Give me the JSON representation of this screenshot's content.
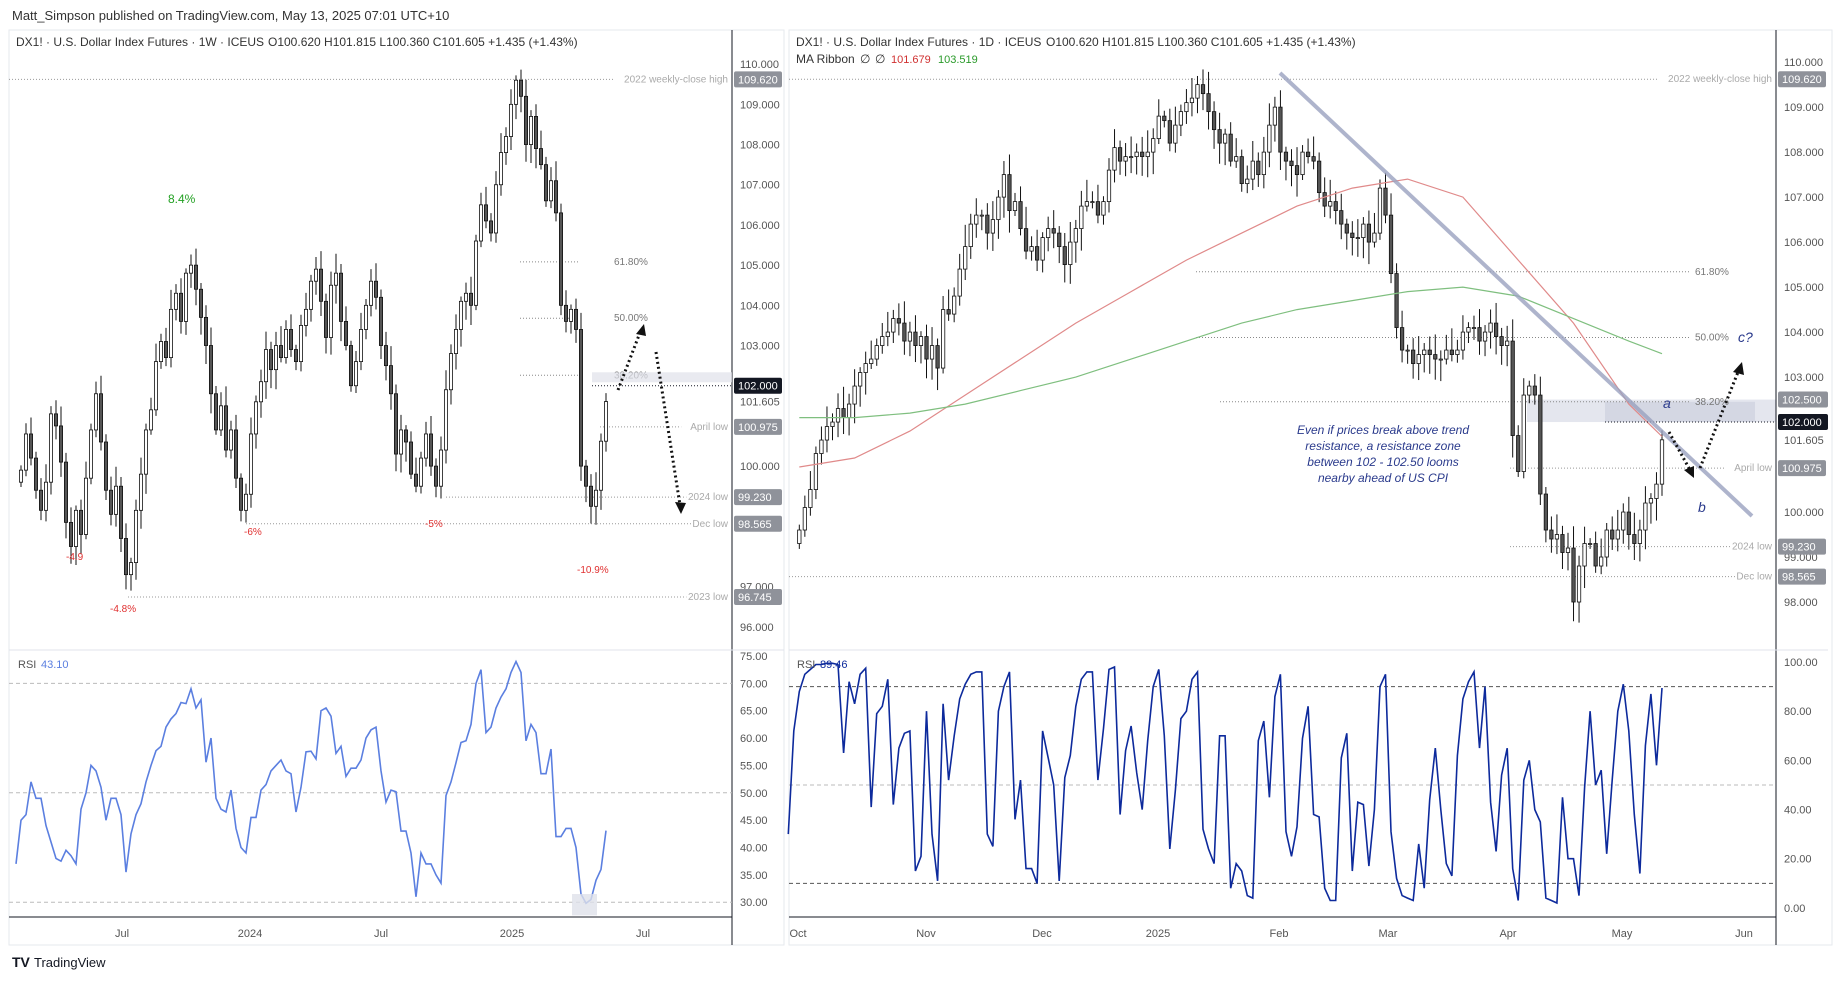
{
  "header": {
    "published": "Matt_Simpson published on TradingView.com, May 13, 2025 07:01 UTC+10"
  },
  "footer": {
    "logo_text": "TradingView"
  },
  "colors": {
    "up_body": "#ffffff",
    "down_body": "#555555",
    "candle_outline": "#111111",
    "rsi_weekly": "#5b7fe0",
    "rsi_daily": "#0d2a9c",
    "ma_fast": "#e08a8a",
    "ma_slow": "#7fbf7f",
    "annotation": "#2a3a8c",
    "pct_up": "#22a022",
    "pct_down": "#e03030"
  },
  "chart_data": [
    {
      "type": "candlestick",
      "legend": {
        "symbol": "DX1! · U.S. Dollar Index Futures · 1W · ICEUS",
        "ohlc": "O100.620  H101.815  L100.360  C101.605  +1.435 (+1.43%)"
      },
      "timeframe": "1W",
      "ylim": [
        95.5,
        110.8
      ],
      "y_ticks": [
        "110.000",
        "109.000",
        "108.000",
        "107.000",
        "106.000",
        "105.000",
        "104.000",
        "103.000",
        "100.000",
        "97.000",
        "96.000"
      ],
      "x_ticks": [
        "Jul",
        "2024",
        "Jul",
        "2025",
        "Jul"
      ],
      "last_bar": {
        "open": 100.62,
        "high": 101.815,
        "low": 100.36,
        "close": 101.605
      },
      "current_price_label": "101.605",
      "closes": [
        99.9,
        100.8,
        100.2,
        99.4,
        98.9,
        99.6,
        101.3,
        101.0,
        100.1,
        98.6,
        98.0,
        98.9,
        98.3,
        99.7,
        100.9,
        101.8,
        100.6,
        99.4,
        98.8,
        99.5,
        98.2,
        97.3,
        97.6,
        98.9,
        99.8,
        100.9,
        101.4,
        102.6,
        103.1,
        102.7,
        103.9,
        104.3,
        103.6,
        104.8,
        105.0,
        104.4,
        103.7,
        103.0,
        101.8,
        100.9,
        101.5,
        100.4,
        100.9,
        99.7,
        98.9,
        99.3,
        100.8,
        101.6,
        102.1,
        102.9,
        102.4,
        103.0,
        102.7,
        103.4,
        102.9,
        102.6,
        103.5,
        103.9,
        104.6,
        104.9,
        104.1,
        103.2,
        104.5,
        104.8,
        103.6,
        103.0,
        102.0,
        102.6,
        103.4,
        104.0,
        104.6,
        104.2,
        103.0,
        102.5,
        101.8,
        100.3,
        100.9,
        100.6,
        99.8,
        99.5,
        100.2,
        100.8,
        100.0,
        99.5,
        100.4,
        101.9,
        102.8,
        103.4,
        104.1,
        104.3,
        104.0,
        105.6,
        106.5,
        106.1,
        105.8,
        107.0,
        107.8,
        108.2,
        109.0,
        109.6,
        109.2,
        108.0,
        108.7,
        107.9,
        107.5,
        106.6,
        107.1,
        106.3,
        104.0,
        103.6,
        103.9,
        103.4,
        100.0,
        99.5,
        99.0,
        99.4,
        100.62,
        101.605
      ],
      "levels": [
        {
          "label": "2022 weekly-close high",
          "value": 109.62,
          "badge": "109.620"
        },
        {
          "label": "April low",
          "value": 100.975,
          "badge": "100.975"
        },
        {
          "label": "2024 low",
          "value": 99.23,
          "badge": "99.230"
        },
        {
          "label": "Dec low",
          "value": 98.565,
          "badge": "98.565"
        },
        {
          "label": "2023 low",
          "value": 96.745,
          "badge": "96.745"
        }
      ],
      "highlight_level": {
        "value": 102.0,
        "badge": "102.000"
      },
      "fib_levels": [
        {
          "label": "61.80%",
          "value": 105.08
        },
        {
          "label": "50.00%",
          "value": 103.68
        },
        {
          "label": "38.20%",
          "value": 102.26
        }
      ],
      "pct_annotations": [
        {
          "text": "8.4%",
          "dir": "up"
        },
        {
          "text": "-4.9",
          "dir": "down"
        },
        {
          "text": "-4.8%",
          "dir": "down"
        },
        {
          "text": "-6%",
          "dir": "down"
        },
        {
          "text": "-5%",
          "dir": "down"
        },
        {
          "text": "-10.9%",
          "dir": "down"
        }
      ],
      "rsi": {
        "label": "RSI",
        "value_label": "43.10",
        "ylim": [
          27.3,
          76.1
        ],
        "y_ticks": [
          "75.00",
          "70.00",
          "65.00",
          "60.00",
          "55.00",
          "50.00",
          "45.00",
          "40.00",
          "35.00",
          "30.00"
        ],
        "bands": [
          70,
          50,
          30
        ],
        "values": [
          37,
          45,
          46,
          52,
          49,
          49,
          44,
          41,
          38,
          37.5,
          39.5,
          38.5,
          37,
          47,
          50,
          55,
          54,
          51,
          45,
          49,
          49,
          46,
          35.5,
          42.5,
          46,
          48,
          52,
          55,
          57.7,
          58.5,
          62,
          63.5,
          64.5,
          66.5,
          66.3,
          69,
          65.5,
          67,
          55.6,
          60,
          49,
          47,
          46.5,
          50.5,
          43.5,
          40,
          39,
          45.5,
          45.5,
          50.5,
          51.5,
          54,
          55,
          56,
          54,
          53.5,
          46.5,
          51,
          57.5,
          57.6,
          56.2,
          65,
          65.5,
          64,
          57.2,
          58.5,
          53,
          54.5,
          54.5,
          56,
          60,
          61.5,
          62,
          54,
          48.3,
          50.5,
          50.2,
          43,
          43,
          39,
          31,
          39,
          37,
          37,
          35,
          33.5,
          49.5,
          52,
          55.5,
          59.2,
          59.5,
          62.5,
          70,
          72.5,
          61,
          62,
          65.5,
          67.5,
          69,
          72,
          74,
          72,
          59.5,
          62.5,
          61,
          53.5,
          53.5,
          58,
          42,
          42,
          43.5,
          43.5,
          40,
          31.5,
          29.8,
          30.5,
          34,
          36,
          43.1
        ]
      }
    },
    {
      "type": "candlestick",
      "legend": {
        "symbol": "DX1! · U.S. Dollar Index Futures · 1D · ICEUS",
        "ohlc": "O100.620  H101.815  L100.360  C101.605  +1.435 (+1.43%)"
      },
      "timeframe": "1D",
      "ma_ribbon": {
        "label": "MA Ribbon",
        "params": [
          "∅",
          "∅"
        ],
        "fast_label": "101.679",
        "slow_label": "103.519",
        "fast": [
          101.0,
          101.2,
          101.8,
          102.6,
          103.4,
          104.2,
          104.9,
          105.6,
          106.2,
          106.8,
          107.2,
          107.4,
          107.0,
          105.6,
          104.2,
          102.4,
          101.679
        ],
        "slow": [
          102.1,
          102.1,
          102.2,
          102.4,
          102.7,
          103.0,
          103.4,
          103.8,
          104.2,
          104.5,
          104.7,
          104.9,
          105.0,
          104.8,
          104.3,
          103.8,
          103.519
        ]
      },
      "ylim": [
        97.0,
        110.67
      ],
      "y_ticks": [
        "110.000",
        "109.000",
        "108.000",
        "107.000",
        "106.000",
        "105.000",
        "104.000",
        "103.000",
        "100.000",
        "99.000",
        "98.000"
      ],
      "x_ticks": [
        "Oct",
        "Nov",
        "Dec",
        "2025",
        "Feb",
        "Mar",
        "Apr",
        "May",
        "Jun"
      ],
      "last_bar": {
        "open": 100.62,
        "high": 101.815,
        "low": 100.36,
        "close": 101.605
      },
      "current_price_label": "101.605",
      "closes": [
        99.6,
        100.1,
        100.5,
        101.3,
        101.6,
        101.9,
        102.0,
        102.3,
        102.1,
        102.4,
        102.8,
        103.1,
        103.3,
        103.4,
        103.7,
        103.9,
        104.0,
        104.3,
        104.2,
        103.8,
        104.0,
        103.7,
        103.9,
        103.4,
        103.7,
        103.2,
        104.5,
        104.4,
        104.8,
        105.4,
        105.9,
        106.4,
        106.6,
        106.6,
        106.2,
        106.5,
        107.0,
        107.5,
        106.7,
        106.9,
        106.3,
        105.8,
        105.9,
        105.6,
        106.1,
        106.3,
        106.2,
        105.9,
        105.5,
        106.0,
        106.3,
        106.8,
        106.9,
        106.9,
        106.6,
        106.9,
        107.6,
        108.1,
        107.8,
        107.9,
        107.9,
        108.0,
        107.9,
        108.0,
        108.3,
        108.8,
        108.7,
        108.2,
        108.6,
        108.9,
        109.1,
        109.2,
        109.5,
        109.3,
        108.9,
        108.5,
        108.2,
        108.4,
        107.8,
        107.9,
        107.3,
        107.4,
        107.8,
        107.5,
        108.0,
        108.6,
        109.0,
        108.0,
        107.8,
        107.7,
        107.5,
        108.0,
        107.9,
        107.8,
        107.1,
        106.8,
        106.9,
        106.7,
        106.4,
        106.2,
        106.1,
        106.1,
        106.4,
        106.0,
        106.2,
        107.2,
        106.6,
        105.3,
        104.1,
        103.6,
        103.6,
        103.3,
        103.5,
        103.6,
        103.5,
        103.4,
        103.4,
        103.6,
        103.5,
        103.6,
        104.0,
        104.1,
        104.1,
        103.8,
        104.0,
        104.2,
        103.9,
        103.7,
        103.8,
        101.7,
        100.9,
        102.6,
        102.8,
        102.6,
        100.4,
        99.6,
        99.4,
        99.5,
        99.1,
        99.2,
        98.0,
        98.8,
        99.3,
        99.3,
        98.8,
        99.0,
        99.6,
        99.4,
        99.6,
        100.0,
        99.5,
        99.3,
        99.6,
        100.2,
        100.3,
        100.62,
        101.605
      ],
      "levels": [
        {
          "label": "2022 weekly-close high",
          "value": 109.62,
          "badge": "109.620"
        },
        {
          "label": "April low",
          "value": 100.975,
          "badge": "100.975"
        },
        {
          "label": "2024 low",
          "value": 99.23,
          "badge": "99.230"
        },
        {
          "label": "Dec low",
          "value": 98.565,
          "badge": "98.565"
        }
      ],
      "resistance_zone": {
        "low": 102.0,
        "high": 102.5,
        "badge_low": "102.000",
        "badge_high": "102.500"
      },
      "fib_levels": [
        {
          "label": "61.80%",
          "value": 105.34
        },
        {
          "label": "50.00%",
          "value": 103.88
        },
        {
          "label": "38.20%",
          "value": 102.45
        }
      ],
      "wave_labels": [
        "a",
        "b",
        "c?"
      ],
      "annotation": [
        "Even if prices break above trend",
        "resistance, a resistance zone",
        "between 102 - 102.50 looms",
        "nearby ahead of US CPI"
      ],
      "rsi": {
        "label": "RSI",
        "value_label": "89.46",
        "ylim": [
          -3.7,
          104.9
        ],
        "y_ticks": [
          "100.00",
          "80.00",
          "60.00",
          "40.00",
          "20.00",
          "0.00"
        ],
        "bands": [
          90,
          50,
          10
        ],
        "values": [
          30,
          72,
          88,
          95,
          97,
          99,
          99,
          99.5,
          99.5,
          99,
          63,
          92,
          83,
          95,
          97.5,
          41,
          79,
          82,
          93,
          42,
          65,
          71,
          72,
          15,
          21,
          80,
          30,
          11,
          83,
          52,
          70,
          85,
          91,
          95,
          96,
          96,
          30,
          25,
          80,
          90,
          96,
          36,
          52,
          16,
          16,
          10,
          72,
          61,
          50,
          11,
          53,
          62,
          82,
          93,
          96,
          96,
          52,
          73,
          97,
          98,
          38,
          64,
          74,
          55,
          40,
          68,
          90,
          97,
          70,
          24,
          48,
          77,
          80,
          93,
          96,
          32,
          24,
          18,
          70,
          70,
          8,
          18,
          15,
          5,
          4,
          68,
          76,
          45,
          86,
          95,
          31,
          21,
          33,
          69,
          82,
          38,
          37,
          8,
          3,
          3,
          61,
          71,
          15,
          43,
          42,
          17,
          40,
          90,
          95,
          31,
          12,
          5,
          4,
          3,
          26,
          8,
          44,
          65,
          40,
          18,
          13,
          62,
          85,
          92,
          96,
          65,
          90,
          43,
          23,
          54,
          65,
          16,
          3,
          52,
          60,
          40,
          35,
          4,
          3,
          2,
          45,
          20,
          20,
          5,
          49,
          80,
          50,
          56,
          22,
          52,
          80,
          91,
          72,
          38,
          14,
          66,
          87,
          58,
          89.46
        ]
      }
    }
  ]
}
